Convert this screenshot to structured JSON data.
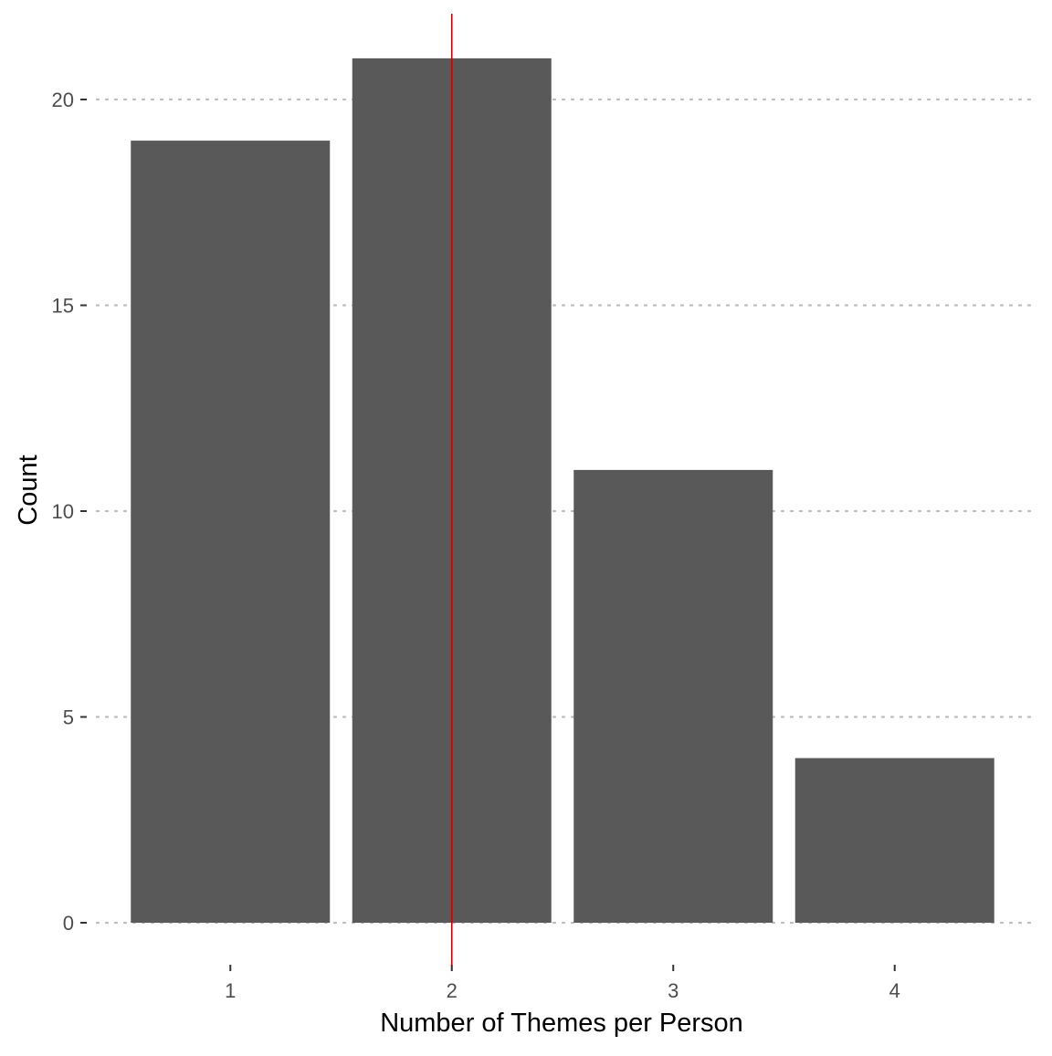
{
  "chart_data": {
    "type": "bar",
    "categories": [
      "1",
      "2",
      "3",
      "4"
    ],
    "values": [
      19,
      21,
      11,
      4
    ],
    "xlabel": "Number of Themes per Person",
    "ylabel": "Count",
    "ylim": [
      0,
      21
    ],
    "yticks": [
      0,
      5,
      10,
      15,
      20
    ],
    "grid": "horizontal dotted",
    "bar_color": "#595959",
    "grid_color": "#bdbdbd",
    "reference_line": {
      "x": "2",
      "color": "#cc0000"
    }
  }
}
